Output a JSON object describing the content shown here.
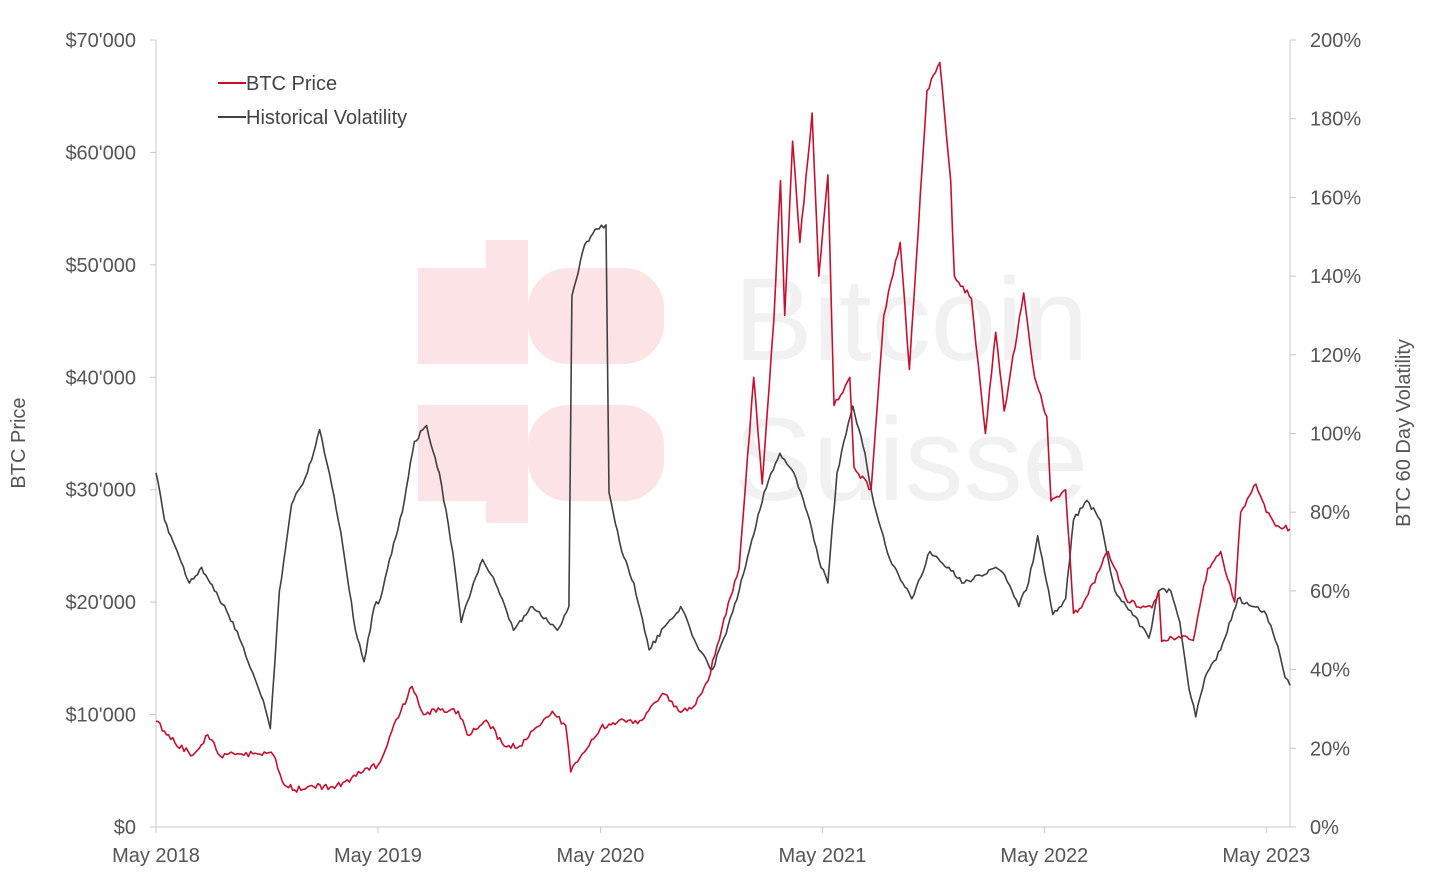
{
  "watermark": {
    "line1": "Bitcoin",
    "line2": "Suisse"
  },
  "colors": {
    "price": "#c8102e",
    "volatility": "#404040",
    "axis": "#c8c8c8",
    "watermark_logo": "#fbe3e6"
  },
  "chart_data": {
    "type": "line",
    "x_domain": [
      "2018-05-01",
      "2023-06-09"
    ],
    "x_tick_labels": [
      "May 2018",
      "May 2019",
      "May 2020",
      "May 2021",
      "May 2022",
      "May 2023"
    ],
    "x_tick_dates": [
      "2018-05-01",
      "2019-05-01",
      "2020-05-01",
      "2021-05-01",
      "2022-05-01",
      "2023-05-01"
    ],
    "y_left": {
      "label": "BTC Price",
      "range": [
        0,
        70000
      ],
      "tick_labels": [
        "$0",
        "$10'000",
        "$20'000",
        "$30'000",
        "$40'000",
        "$50'000",
        "$60'000",
        "$70'000"
      ]
    },
    "y_right": {
      "label": "BTC 60 Day Volatility",
      "range": [
        0,
        200
      ],
      "tick_labels": [
        "0%",
        "20%",
        "40%",
        "60%",
        "80%",
        "100%",
        "120%",
        "140%",
        "160%",
        "180%",
        "200%"
      ]
    },
    "legend": {
      "position": "top-left"
    },
    "series": [
      {
        "name": "BTC Price",
        "axis": "left",
        "points": [
          [
            "2018-05-01",
            9400
          ],
          [
            "2018-06-01",
            7500
          ],
          [
            "2018-07-01",
            6400
          ],
          [
            "2018-07-25",
            8200
          ],
          [
            "2018-08-15",
            6300
          ],
          [
            "2018-09-15",
            6500
          ],
          [
            "2018-10-15",
            6500
          ],
          [
            "2018-11-10",
            6400
          ],
          [
            "2018-11-25",
            4000
          ],
          [
            "2018-12-15",
            3300
          ],
          [
            "2019-01-15",
            3600
          ],
          [
            "2019-02-15",
            3600
          ],
          [
            "2019-03-15",
            4000
          ],
          [
            "2019-04-10",
            5200
          ],
          [
            "2019-05-01",
            5500
          ],
          [
            "2019-05-20",
            8000
          ],
          [
            "2019-06-26",
            12500
          ],
          [
            "2019-07-15",
            10000
          ],
          [
            "2019-08-15",
            10500
          ],
          [
            "2019-09-10",
            10300
          ],
          [
            "2019-09-25",
            8200
          ],
          [
            "2019-10-26",
            9500
          ],
          [
            "2019-11-25",
            7200
          ],
          [
            "2019-12-20",
            7200
          ],
          [
            "2020-01-15",
            8800
          ],
          [
            "2020-02-12",
            10300
          ],
          [
            "2020-03-05",
            9000
          ],
          [
            "2020-03-13",
            4900
          ],
          [
            "2020-04-01",
            6500
          ],
          [
            "2020-05-01",
            8800
          ],
          [
            "2020-06-01",
            9500
          ],
          [
            "2020-07-01",
            9200
          ],
          [
            "2020-07-30",
            11100
          ],
          [
            "2020-08-15",
            11800
          ],
          [
            "2020-09-10",
            10200
          ],
          [
            "2020-10-01",
            10700
          ],
          [
            "2020-10-25",
            13000
          ],
          [
            "2020-11-20",
            18500
          ],
          [
            "2020-12-15",
            23000
          ],
          [
            "2021-01-08",
            40000
          ],
          [
            "2021-01-22",
            30500
          ],
          [
            "2021-02-10",
            45000
          ],
          [
            "2021-02-21",
            57500
          ],
          [
            "2021-02-28",
            45500
          ],
          [
            "2021-03-13",
            61000
          ],
          [
            "2021-03-25",
            52000
          ],
          [
            "2021-04-14",
            63500
          ],
          [
            "2021-04-25",
            49000
          ],
          [
            "2021-05-10",
            58000
          ],
          [
            "2021-05-20",
            37500
          ],
          [
            "2021-06-15",
            40000
          ],
          [
            "2021-06-22",
            32000
          ],
          [
            "2021-07-20",
            30000
          ],
          [
            "2021-08-10",
            45500
          ],
          [
            "2021-09-06",
            52000
          ],
          [
            "2021-09-21",
            40700
          ],
          [
            "2021-10-20",
            65500
          ],
          [
            "2021-11-10",
            68000
          ],
          [
            "2021-11-28",
            57500
          ],
          [
            "2021-12-04",
            49000
          ],
          [
            "2022-01-01",
            47000
          ],
          [
            "2022-01-24",
            35000
          ],
          [
            "2022-02-10",
            44000
          ],
          [
            "2022-02-24",
            37000
          ],
          [
            "2022-03-28",
            47500
          ],
          [
            "2022-04-15",
            40000
          ],
          [
            "2022-05-05",
            36500
          ],
          [
            "2022-05-12",
            29000
          ],
          [
            "2022-06-05",
            30000
          ],
          [
            "2022-06-18",
            19000
          ],
          [
            "2022-07-01",
            19500
          ],
          [
            "2022-08-14",
            24500
          ],
          [
            "2022-09-15",
            20000
          ],
          [
            "2022-10-25",
            19500
          ],
          [
            "2022-11-05",
            21000
          ],
          [
            "2022-11-10",
            16500
          ],
          [
            "2022-12-15",
            17000
          ],
          [
            "2023-01-01",
            16600
          ],
          [
            "2023-01-25",
            23000
          ],
          [
            "2023-02-15",
            24500
          ],
          [
            "2023-03-10",
            20000
          ],
          [
            "2023-03-20",
            28000
          ],
          [
            "2023-04-14",
            30500
          ],
          [
            "2023-05-01",
            28000
          ],
          [
            "2023-05-20",
            26800
          ],
          [
            "2023-06-09",
            26500
          ]
        ]
      },
      {
        "name": "Historical Volatility",
        "axis": "right",
        "points": [
          [
            "2018-05-01",
            90
          ],
          [
            "2018-05-15",
            78
          ],
          [
            "2018-06-05",
            70
          ],
          [
            "2018-06-25",
            62
          ],
          [
            "2018-07-15",
            66
          ],
          [
            "2018-08-05",
            60
          ],
          [
            "2018-08-25",
            55
          ],
          [
            "2018-09-15",
            48
          ],
          [
            "2018-10-10",
            38
          ],
          [
            "2018-10-28",
            30
          ],
          [
            "2018-11-05",
            25
          ],
          [
            "2018-11-20",
            60
          ],
          [
            "2018-12-10",
            82
          ],
          [
            "2019-01-05",
            90
          ],
          [
            "2019-01-25",
            101
          ],
          [
            "2019-02-10",
            90
          ],
          [
            "2019-03-01",
            75
          ],
          [
            "2019-03-25",
            50
          ],
          [
            "2019-04-08",
            42
          ],
          [
            "2019-04-25",
            56
          ],
          [
            "2019-05-05",
            58
          ],
          [
            "2019-05-20",
            68
          ],
          [
            "2019-06-10",
            80
          ],
          [
            "2019-06-30",
            98
          ],
          [
            "2019-07-20",
            102
          ],
          [
            "2019-08-10",
            90
          ],
          [
            "2019-09-01",
            70
          ],
          [
            "2019-09-15",
            52
          ],
          [
            "2019-10-05",
            62
          ],
          [
            "2019-10-20",
            68
          ],
          [
            "2019-11-10",
            62
          ],
          [
            "2019-12-10",
            50
          ],
          [
            "2020-01-10",
            56
          ],
          [
            "2020-02-20",
            50
          ],
          [
            "2020-03-10",
            56
          ],
          [
            "2020-03-15",
            135
          ],
          [
            "2020-04-05",
            148
          ],
          [
            "2020-04-25",
            152
          ],
          [
            "2020-05-10",
            153
          ],
          [
            "2020-05-15",
            85
          ],
          [
            "2020-06-05",
            70
          ],
          [
            "2020-06-25",
            62
          ],
          [
            "2020-07-20",
            45
          ],
          [
            "2020-08-20",
            52
          ],
          [
            "2020-09-10",
            56
          ],
          [
            "2020-10-10",
            45
          ],
          [
            "2020-11-01",
            40
          ],
          [
            "2020-11-20",
            48
          ],
          [
            "2020-12-15",
            60
          ],
          [
            "2021-01-05",
            73
          ],
          [
            "2021-01-25",
            85
          ],
          [
            "2021-02-20",
            95
          ],
          [
            "2021-03-15",
            90
          ],
          [
            "2021-04-10",
            78
          ],
          [
            "2021-04-25",
            68
          ],
          [
            "2021-05-10",
            62
          ],
          [
            "2021-05-25",
            90
          ],
          [
            "2021-06-20",
            107
          ],
          [
            "2021-07-10",
            95
          ],
          [
            "2021-07-25",
            82
          ],
          [
            "2021-08-20",
            68
          ],
          [
            "2021-09-10",
            62
          ],
          [
            "2021-09-25",
            58
          ],
          [
            "2021-10-25",
            70
          ],
          [
            "2021-11-25",
            66
          ],
          [
            "2021-12-20",
            62
          ],
          [
            "2022-01-15",
            64
          ],
          [
            "2022-02-10",
            66
          ],
          [
            "2022-02-25",
            64
          ],
          [
            "2022-03-20",
            56
          ],
          [
            "2022-04-05",
            62
          ],
          [
            "2022-04-20",
            74
          ],
          [
            "2022-05-01",
            65
          ],
          [
            "2022-05-15",
            54
          ],
          [
            "2022-06-05",
            58
          ],
          [
            "2022-06-18",
            78
          ],
          [
            "2022-07-10",
            83
          ],
          [
            "2022-08-01",
            78
          ],
          [
            "2022-08-25",
            60
          ],
          [
            "2022-09-20",
            55
          ],
          [
            "2022-10-20",
            48
          ],
          [
            "2022-11-05",
            60
          ],
          [
            "2022-11-25",
            60
          ],
          [
            "2022-12-10",
            52
          ],
          [
            "2022-12-25",
            35
          ],
          [
            "2023-01-05",
            28
          ],
          [
            "2023-01-20",
            38
          ],
          [
            "2023-02-15",
            45
          ],
          [
            "2023-03-15",
            58
          ],
          [
            "2023-04-10",
            56
          ],
          [
            "2023-05-01",
            54
          ],
          [
            "2023-05-20",
            46
          ],
          [
            "2023-06-01",
            38
          ],
          [
            "2023-06-09",
            36
          ]
        ]
      }
    ]
  }
}
